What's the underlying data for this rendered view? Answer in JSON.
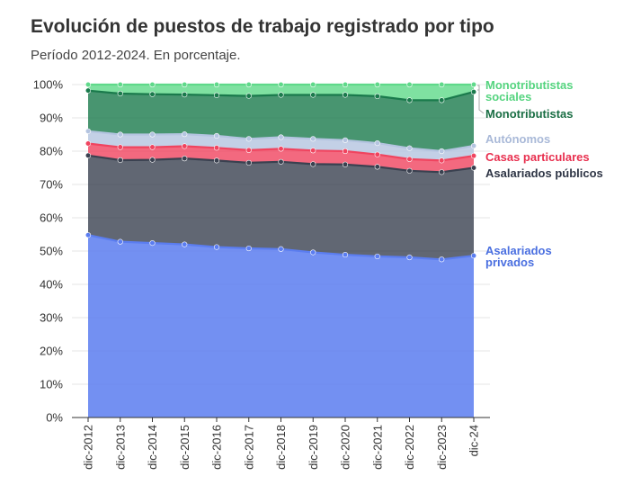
{
  "title": "Evolución de puestos de trabajo registrado por tipo",
  "subtitle": "Período 2012-2024. En porcentaje.",
  "chart_data": {
    "type": "area",
    "stacked": true,
    "title": "Evolución de puestos de trabajo registrado por tipo",
    "subtitle": "Período 2012-2024. En porcentaje.",
    "categories": [
      "dic-2012",
      "dic-2013",
      "dic-2014",
      "dic-2015",
      "dic-2016",
      "dic-2017",
      "dic-2018",
      "dic-2019",
      "dic-2020",
      "dic-2021",
      "dic-2022",
      "dic-2023",
      "dic-24"
    ],
    "ylim": [
      0,
      100
    ],
    "yticks": [
      "0%",
      "10%",
      "20%",
      "30%",
      "40%",
      "50%",
      "60%",
      "70%",
      "80%",
      "90%",
      "100%"
    ],
    "grid": true,
    "legend": "end-labels-right",
    "series": [
      {
        "name": "Asalariados privados",
        "label_lines": [
          "Asalariados",
          "privados"
        ],
        "color": "#5b7df0",
        "cumulative": [
          54.8,
          52.8,
          52.4,
          52.0,
          51.2,
          50.8,
          50.6,
          49.6,
          48.9,
          48.4,
          48.1,
          47.5,
          48.6
        ]
      },
      {
        "name": "Asalariados públicos",
        "label_lines": [
          "Asalariados públicos"
        ],
        "color": "#3a4150",
        "cumulative": [
          78.7,
          77.3,
          77.4,
          77.8,
          77.2,
          76.5,
          76.8,
          76.1,
          76.0,
          75.3,
          74.1,
          73.7,
          75.0
        ]
      },
      {
        "name": "Casas particulares",
        "label_lines": [
          "Casas particulares"
        ],
        "color": "#f0445f",
        "cumulative": [
          82.3,
          81.2,
          81.2,
          81.5,
          81.0,
          80.3,
          80.7,
          80.2,
          80.0,
          79.0,
          77.6,
          77.2,
          78.6
        ]
      },
      {
        "name": "Autónomos",
        "label_lines": [
          "Autónomos"
        ],
        "color": "#b4c4e0",
        "cumulative": [
          86.0,
          85.0,
          85.0,
          85.1,
          84.6,
          83.7,
          84.2,
          83.7,
          83.3,
          82.4,
          80.9,
          80.0,
          81.6
        ]
      },
      {
        "name": "Monotributistas",
        "label_lines": [
          "Monotributistas"
        ],
        "color": "#1a7a4c",
        "cumulative": [
          98.2,
          97.3,
          97.1,
          97.0,
          96.8,
          96.6,
          96.9,
          96.9,
          96.9,
          96.5,
          95.3,
          95.3,
          97.8
        ]
      },
      {
        "name": "Monotributistas sociales",
        "label_lines": [
          "Monotributistas",
          "sociales"
        ],
        "color": "#5fd98a",
        "cumulative": [
          100,
          100,
          100,
          100,
          100,
          100,
          100,
          100,
          100,
          100,
          100,
          100,
          100
        ]
      }
    ]
  }
}
